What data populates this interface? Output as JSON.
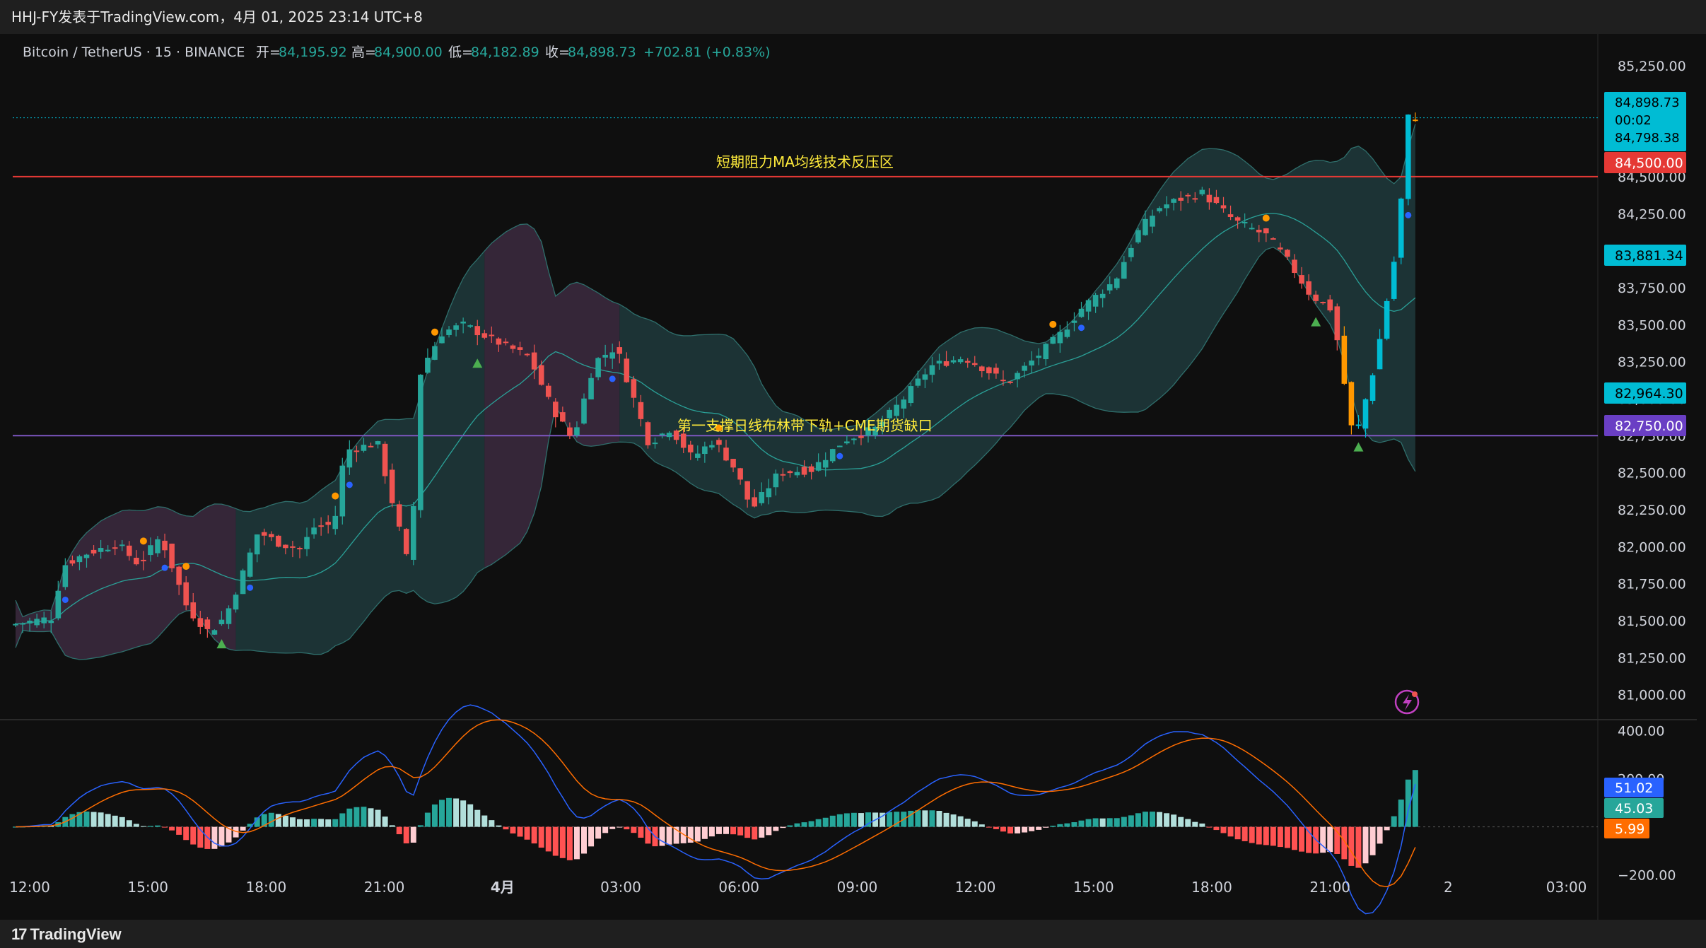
{
  "header": {
    "title": "HHJ-FY发表于TradingView.com，4月 01, 2025 23:14 UTC+8"
  },
  "legend": {
    "symbol": "Bitcoin / TetherUS · 15 · BINANCE",
    "open_label": "开=",
    "open": "84,195.92",
    "high_label": "高=",
    "high": "84,900.00",
    "low_label": "低=",
    "low": "84,182.89",
    "close_label": "收=",
    "close": "84,898.73",
    "change": "+702.81 (+0.83%)"
  },
  "colors": {
    "up": "#26a69a",
    "down": "#ef5350",
    "cyan": "#00bcd4",
    "orange": "#ff9800",
    "blue": "#2962ff",
    "purple": "#9c27b0",
    "resistance": "#e53935",
    "support": "#7e57c2",
    "annotation": "#ffeb3b"
  },
  "annotations": {
    "resistance_text": "短期阻力MA均线技术反压区",
    "support_text": "第一支撑日线布林带下轨+CME期货缺口"
  },
  "price_axis": {
    "ticks": [
      "85,250.00",
      "85,000.00",
      "84,750.00",
      "84,500.00",
      "84,250.00",
      "84,000.00",
      "83,750.00",
      "83,500.00",
      "83,250.00",
      "83,000.00",
      "82,750.00",
      "82,500.00",
      "82,250.00",
      "82,000.00",
      "81,750.00",
      "81,500.00",
      "81,250.00",
      "81,000.00"
    ],
    "labels": {
      "last_price": "84,898.73",
      "countdown": "00:02",
      "prev_price": "84,798.38",
      "resistance": "84,500.00",
      "ma_value": "83,881.34",
      "lower_value": "82,964.30",
      "support": "82,750.00"
    }
  },
  "macd_axis": {
    "ticks": [
      "400.00",
      "200.00",
      "−200.00"
    ],
    "labels": {
      "macd": "51.02",
      "hist": "45.03",
      "signal": "5.99"
    }
  },
  "time_axis": {
    "ticks": [
      "12:00",
      "15:00",
      "18:00",
      "21:00",
      "4月",
      "03:00",
      "06:00",
      "09:00",
      "12:00",
      "15:00",
      "18:00",
      "21:00",
      "2",
      "03:00"
    ]
  },
  "chart_data": {
    "type": "candlestick",
    "symbol": "BTCUSDT",
    "interval": "15",
    "ylim": [
      80850,
      85350
    ],
    "levels": {
      "resistance": 84500,
      "support": 82750
    },
    "indicators": [
      "Bollinger Bands",
      "MACD"
    ],
    "macd_ylim": [
      -260,
      440
    ]
  },
  "footer": {
    "brand": "TradingView"
  }
}
